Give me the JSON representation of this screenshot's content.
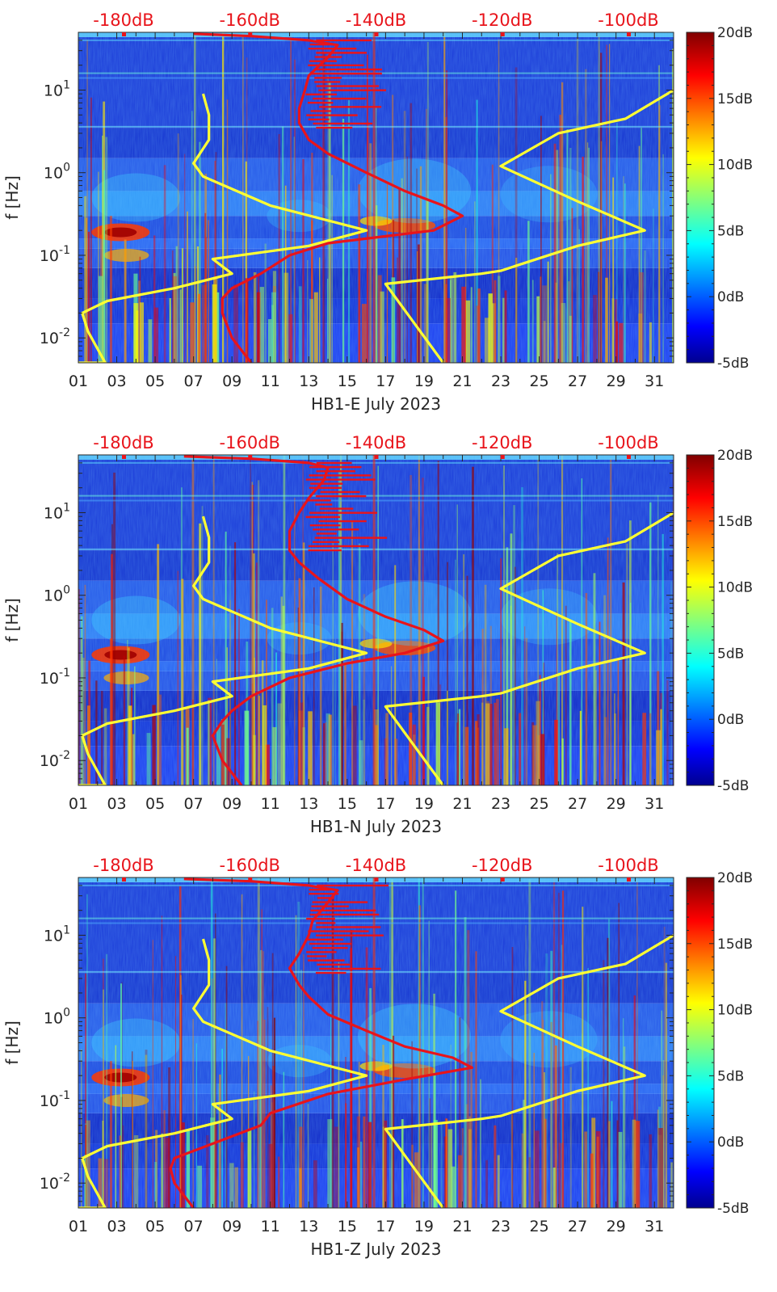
{
  "chart_data": [
    {
      "type": "heatmap",
      "xlabel": "HB1-E July 2023",
      "ylabel": "f [Hz]",
      "x_tick_labels": [
        "01",
        "03",
        "05",
        "07",
        "09",
        "11",
        "13",
        "15",
        "17",
        "19",
        "21",
        "23",
        "25",
        "27",
        "29",
        "31"
      ],
      "x_range_day": [
        1,
        32
      ],
      "y_scale": "log",
      "y_range_hz": [
        0.005,
        50
      ],
      "y_tick_labels": [
        "10^-2",
        "10^-1",
        "10^0",
        "10^1"
      ],
      "top_axis_labels": [
        "-180dB",
        "-160dB",
        "-140dB",
        "-120dB",
        "-100dB"
      ],
      "colorbar_labels": [
        "20dB",
        "15dB",
        "10dB",
        "5dB",
        "0dB",
        "-5dB"
      ],
      "colorbar_range_db": [
        -5,
        20
      ],
      "colormap": "jet",
      "series": [
        {
          "color": "#ffff33",
          "points": [
            [
              1.0,
              0.005
            ],
            [
              2.4,
              0.005
            ],
            [
              1.5,
              0.012
            ],
            [
              1.2,
              0.02
            ],
            [
              2.5,
              0.028
            ],
            [
              6.0,
              0.04
            ],
            [
              9.0,
              0.06
            ],
            [
              8.0,
              0.09
            ],
            [
              13.0,
              0.13
            ],
            [
              16.0,
              0.2
            ],
            [
              11.0,
              0.4
            ],
            [
              7.5,
              0.9
            ],
            [
              7.0,
              1.3
            ],
            [
              7.8,
              2.5
            ],
            [
              7.8,
              5.0
            ],
            [
              7.5,
              9.0
            ]
          ]
        },
        {
          "color": "#ffff33",
          "points": [
            [
              20.0,
              0.005
            ],
            [
              17.0,
              0.045
            ],
            [
              22.0,
              0.06
            ],
            [
              23.0,
              0.065
            ],
            [
              27.0,
              0.13
            ],
            [
              30.5,
              0.2
            ],
            [
              27.0,
              0.45
            ],
            [
              23.0,
              1.2
            ],
            [
              26.0,
              3.0
            ],
            [
              29.5,
              4.5
            ],
            [
              32.0,
              10.0
            ]
          ]
        },
        {
          "color": "#e8141b",
          "points": [
            [
              10.0,
              0.005
            ],
            [
              9.0,
              0.01
            ],
            [
              8.5,
              0.02
            ],
            [
              8.5,
              0.03
            ],
            [
              9.0,
              0.04
            ],
            [
              10.5,
              0.06
            ],
            [
              12.0,
              0.1
            ],
            [
              14.0,
              0.14
            ],
            [
              17.0,
              0.17
            ],
            [
              19.5,
              0.2
            ],
            [
              21.0,
              0.3
            ],
            [
              20.0,
              0.4
            ],
            [
              18.0,
              0.6
            ],
            [
              16.0,
              1.0
            ],
            [
              14.0,
              1.7
            ],
            [
              13.0,
              2.5
            ],
            [
              12.5,
              4.0
            ],
            [
              12.5,
              6.0
            ],
            [
              12.8,
              10.0
            ],
            [
              13.0,
              15.0
            ],
            [
              14.0,
              25.0
            ],
            [
              14.5,
              35.0
            ],
            [
              13.0,
              40.0
            ],
            [
              10.0,
              45.0
            ],
            [
              7.0,
              48.0
            ]
          ]
        }
      ]
    },
    {
      "type": "heatmap",
      "xlabel": "HB1-N July 2023",
      "ylabel": "f [Hz]",
      "x_tick_labels": [
        "01",
        "03",
        "05",
        "07",
        "09",
        "11",
        "13",
        "15",
        "17",
        "19",
        "21",
        "23",
        "25",
        "27",
        "29",
        "31"
      ],
      "x_range_day": [
        1,
        32
      ],
      "y_scale": "log",
      "y_range_hz": [
        0.005,
        50
      ],
      "y_tick_labels": [
        "10^-2",
        "10^-1",
        "10^0",
        "10^1"
      ],
      "top_axis_labels": [
        "-180dB",
        "-160dB",
        "-140dB",
        "-120dB",
        "-100dB"
      ],
      "colorbar_labels": [
        "20dB",
        "15dB",
        "10dB",
        "5dB",
        "0dB",
        "-5dB"
      ],
      "colorbar_range_db": [
        -5,
        20
      ],
      "colormap": "jet",
      "series": [
        {
          "color": "#ffff33",
          "points": [
            [
              1.0,
              0.005
            ],
            [
              2.4,
              0.005
            ],
            [
              1.5,
              0.012
            ],
            [
              1.2,
              0.02
            ],
            [
              2.5,
              0.028
            ],
            [
              6.0,
              0.04
            ],
            [
              9.0,
              0.06
            ],
            [
              8.0,
              0.09
            ],
            [
              13.0,
              0.13
            ],
            [
              16.0,
              0.2
            ],
            [
              11.0,
              0.4
            ],
            [
              7.5,
              0.9
            ],
            [
              7.0,
              1.3
            ],
            [
              7.8,
              2.5
            ],
            [
              7.8,
              5.0
            ],
            [
              7.5,
              9.0
            ]
          ]
        },
        {
          "color": "#ffff33",
          "points": [
            [
              20.0,
              0.005
            ],
            [
              17.0,
              0.045
            ],
            [
              22.0,
              0.06
            ],
            [
              23.0,
              0.065
            ],
            [
              27.0,
              0.13
            ],
            [
              30.5,
              0.2
            ],
            [
              27.0,
              0.45
            ],
            [
              23.0,
              1.2
            ],
            [
              26.0,
              3.0
            ],
            [
              29.5,
              4.5
            ],
            [
              32.0,
              10.0
            ]
          ]
        },
        {
          "color": "#e8141b",
          "points": [
            [
              9.5,
              0.005
            ],
            [
              8.5,
              0.01
            ],
            [
              8.0,
              0.02
            ],
            [
              8.5,
              0.03
            ],
            [
              9.0,
              0.04
            ],
            [
              10.0,
              0.06
            ],
            [
              12.0,
              0.1
            ],
            [
              15.0,
              0.15
            ],
            [
              18.0,
              0.2
            ],
            [
              20.0,
              0.28
            ],
            [
              19.0,
              0.38
            ],
            [
              17.0,
              0.55
            ],
            [
              15.0,
              0.9
            ],
            [
              13.5,
              1.6
            ],
            [
              12.5,
              2.5
            ],
            [
              12.0,
              3.5
            ],
            [
              12.0,
              6.0
            ],
            [
              12.5,
              10.0
            ],
            [
              13.0,
              15.0
            ],
            [
              13.8,
              25.0
            ],
            [
              14.0,
              35.0
            ],
            [
              13.0,
              40.0
            ],
            [
              10.0,
              45.0
            ],
            [
              6.5,
              48.0
            ]
          ]
        }
      ]
    },
    {
      "type": "heatmap",
      "xlabel": "HB1-Z July 2023",
      "ylabel": "f [Hz]",
      "x_tick_labels": [
        "01",
        "03",
        "05",
        "07",
        "09",
        "11",
        "13",
        "15",
        "17",
        "19",
        "21",
        "23",
        "25",
        "27",
        "29",
        "31"
      ],
      "x_range_day": [
        1,
        32
      ],
      "y_scale": "log",
      "y_range_hz": [
        0.005,
        50
      ],
      "y_tick_labels": [
        "10^-2",
        "10^-1",
        "10^0",
        "10^1"
      ],
      "top_axis_labels": [
        "-180dB",
        "-160dB",
        "-140dB",
        "-120dB",
        "-100dB"
      ],
      "colorbar_labels": [
        "20dB",
        "15dB",
        "10dB",
        "5dB",
        "0dB",
        "-5dB"
      ],
      "colorbar_range_db": [
        -5,
        20
      ],
      "colormap": "jet",
      "series": [
        {
          "color": "#ffff33",
          "points": [
            [
              1.0,
              0.005
            ],
            [
              2.4,
              0.005
            ],
            [
              1.5,
              0.012
            ],
            [
              1.2,
              0.02
            ],
            [
              2.5,
              0.028
            ],
            [
              6.0,
              0.04
            ],
            [
              9.0,
              0.06
            ],
            [
              8.0,
              0.09
            ],
            [
              13.0,
              0.13
            ],
            [
              16.0,
              0.2
            ],
            [
              11.0,
              0.4
            ],
            [
              7.5,
              0.9
            ],
            [
              7.0,
              1.3
            ],
            [
              7.8,
              2.5
            ],
            [
              7.8,
              5.0
            ],
            [
              7.5,
              9.0
            ]
          ]
        },
        {
          "color": "#ffff33",
          "points": [
            [
              20.0,
              0.005
            ],
            [
              17.0,
              0.045
            ],
            [
              22.0,
              0.06
            ],
            [
              23.0,
              0.065
            ],
            [
              27.0,
              0.13
            ],
            [
              30.5,
              0.2
            ],
            [
              27.0,
              0.45
            ],
            [
              23.0,
              1.2
            ],
            [
              26.0,
              3.0
            ],
            [
              29.5,
              4.5
            ],
            [
              32.0,
              10.0
            ]
          ]
        },
        {
          "color": "#e8141b",
          "points": [
            [
              7.0,
              0.005
            ],
            [
              6.0,
              0.01
            ],
            [
              5.8,
              0.015
            ],
            [
              6.0,
              0.02
            ],
            [
              8.0,
              0.03
            ],
            [
              10.5,
              0.05
            ],
            [
              11.0,
              0.07
            ],
            [
              14.0,
              0.12
            ],
            [
              18.0,
              0.18
            ],
            [
              21.5,
              0.25
            ],
            [
              20.5,
              0.33
            ],
            [
              18.0,
              0.45
            ],
            [
              16.0,
              0.7
            ],
            [
              14.0,
              1.1
            ],
            [
              13.0,
              1.8
            ],
            [
              12.5,
              2.5
            ],
            [
              12.0,
              4.0
            ],
            [
              12.5,
              6.0
            ],
            [
              13.0,
              10.0
            ],
            [
              13.2,
              15.0
            ],
            [
              14.0,
              25.0
            ],
            [
              14.5,
              35.0
            ],
            [
              13.0,
              40.0
            ],
            [
              10.0,
              45.0
            ],
            [
              6.5,
              48.0
            ]
          ]
        }
      ]
    }
  ]
}
